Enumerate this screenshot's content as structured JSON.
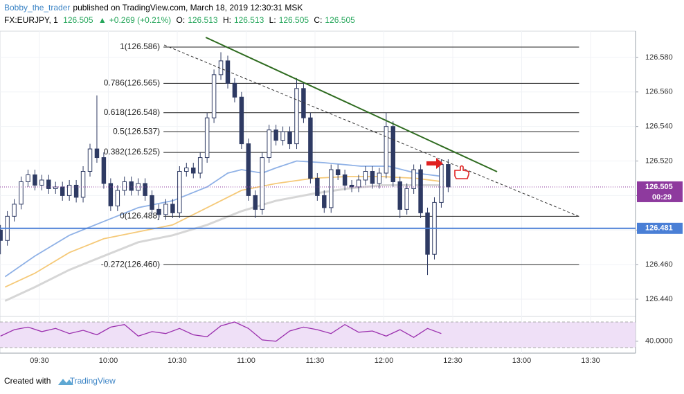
{
  "header": {
    "author": "Bobby_the_trader",
    "published": "published on TradingView.com, March 18, 2019 12:30:31 MSK",
    "symbol": "FX:EURJPY, 1",
    "last": "126.505",
    "arrow": "▲",
    "change": "+0.269 (+0.21%)",
    "o_label": "O:",
    "o": "126.513",
    "h_label": "H:",
    "h": "126.513",
    "l_label": "L:",
    "l": "126.505",
    "c_label": "C:",
    "c": "126.505"
  },
  "footer": {
    "text": "Created with",
    "brand": "TradingView"
  },
  "chart_data": [
    {
      "type": "candlestick",
      "x": [
        553,
        556,
        559,
        562,
        565,
        568,
        571,
        574,
        577,
        580,
        583,
        586,
        589,
        592,
        595,
        598,
        601,
        604,
        607,
        610,
        613,
        616,
        619,
        622,
        625,
        628,
        631,
        634,
        637,
        640,
        643,
        646,
        649,
        652,
        655,
        658,
        661,
        664,
        667,
        670,
        673,
        676,
        679,
        682,
        685,
        688,
        691,
        694,
        697,
        700,
        703,
        706,
        709,
        712,
        715,
        718,
        721,
        724,
        727,
        730,
        733,
        736,
        739,
        742,
        745,
        748
      ],
      "open": [
        126.48,
        126.474,
        126.488,
        126.495,
        126.508,
        126.512,
        126.506,
        126.509,
        126.504,
        126.505,
        126.5,
        126.506,
        126.499,
        126.514,
        126.527,
        126.522,
        126.507,
        126.494,
        126.503,
        126.508,
        126.503,
        126.507,
        126.5,
        126.492,
        126.489,
        126.495,
        126.49,
        126.514,
        126.516,
        126.513,
        126.522,
        126.545,
        126.57,
        126.578,
        126.565,
        126.557,
        126.53,
        126.5,
        126.492,
        126.522,
        126.538,
        126.532,
        126.537,
        126.53,
        126.562,
        126.545,
        126.51,
        126.5,
        126.493,
        126.515,
        126.512,
        126.506,
        126.505,
        126.509,
        126.514,
        126.507,
        126.513,
        126.54,
        126.508,
        126.492,
        126.504,
        126.515,
        126.49,
        126.466,
        126.496,
        126.518
      ],
      "high": [
        126.483,
        126.491,
        126.498,
        126.511,
        126.515,
        126.515,
        126.512,
        126.512,
        126.508,
        126.508,
        126.509,
        126.509,
        126.517,
        126.53,
        126.558,
        126.525,
        126.51,
        126.506,
        126.511,
        126.511,
        126.51,
        126.51,
        126.503,
        126.495,
        126.498,
        126.498,
        126.517,
        126.519,
        126.519,
        126.525,
        126.548,
        126.573,
        126.583,
        126.581,
        126.568,
        126.56,
        126.533,
        126.503,
        126.525,
        126.541,
        126.541,
        126.54,
        126.54,
        126.568,
        126.565,
        126.548,
        126.513,
        126.503,
        126.518,
        126.518,
        126.515,
        126.509,
        126.512,
        126.517,
        126.517,
        126.516,
        126.548,
        126.543,
        126.511,
        126.507,
        126.518,
        126.518,
        126.493,
        126.499,
        126.521,
        126.521
      ],
      "low": [
        126.466,
        126.471,
        126.485,
        126.492,
        126.505,
        126.503,
        126.503,
        126.501,
        126.501,
        126.497,
        126.497,
        126.496,
        126.496,
        126.511,
        126.519,
        126.504,
        126.491,
        126.491,
        126.5,
        126.5,
        126.5,
        126.497,
        126.489,
        126.486,
        126.486,
        126.487,
        126.487,
        126.511,
        126.51,
        126.51,
        126.519,
        126.542,
        126.567,
        126.562,
        126.554,
        126.527,
        126.497,
        126.487,
        126.489,
        126.519,
        126.529,
        126.529,
        126.527,
        126.527,
        126.542,
        126.507,
        126.497,
        126.49,
        126.49,
        126.509,
        126.503,
        126.502,
        126.502,
        126.506,
        126.504,
        126.504,
        126.51,
        126.505,
        126.487,
        126.489,
        126.501,
        126.487,
        126.454,
        126.463,
        126.493,
        126.502
      ],
      "close": [
        126.474,
        126.488,
        126.495,
        126.508,
        126.512,
        126.506,
        126.509,
        126.504,
        126.505,
        126.5,
        126.506,
        126.499,
        126.514,
        126.527,
        126.522,
        126.507,
        126.494,
        126.503,
        126.508,
        126.503,
        126.507,
        126.5,
        126.492,
        126.489,
        126.495,
        126.49,
        126.514,
        126.516,
        126.513,
        126.522,
        126.545,
        126.57,
        126.578,
        126.565,
        126.557,
        126.53,
        126.5,
        126.492,
        126.522,
        126.538,
        126.532,
        126.537,
        126.53,
        126.562,
        126.545,
        126.51,
        126.5,
        126.493,
        126.515,
        126.512,
        126.506,
        126.505,
        126.509,
        126.514,
        126.507,
        126.513,
        126.54,
        126.508,
        126.492,
        126.504,
        126.515,
        126.49,
        126.466,
        126.496,
        126.518,
        126.505
      ],
      "up_color": "#2e3a63",
      "down_color": "#2e3a63",
      "series": [
        {
          "color": "#8fb1e6",
          "x": [
            555,
            568,
            583,
            598,
            613,
            628,
            643,
            652,
            658,
            667,
            673,
            682,
            694,
            710,
            722,
            734,
            746
          ],
          "values": [
            126.453,
            126.465,
            126.477,
            126.485,
            126.493,
            126.497,
            126.505,
            126.513,
            126.515,
            126.513,
            126.516,
            126.52,
            126.519,
            126.517,
            126.517,
            126.513,
            126.511
          ]
        },
        {
          "color": "#f5c978",
          "x": [
            555,
            568,
            583,
            598,
            613,
            628,
            643,
            658,
            673,
            689,
            704,
            719,
            734,
            746
          ],
          "values": [
            126.447,
            126.455,
            126.467,
            126.475,
            126.479,
            126.483,
            126.493,
            126.503,
            126.507,
            126.51,
            126.511,
            126.511,
            126.51,
            126.508
          ]
        },
        {
          "color": "#d6d6d6",
          "x": [
            555,
            568,
            583,
            598,
            613,
            628,
            643,
            658,
            673,
            689,
            704,
            719,
            734,
            746
          ],
          "values": [
            126.439,
            126.447,
            126.457,
            126.465,
            126.473,
            126.477,
            126.483,
            126.491,
            126.497,
            126.501,
            126.504,
            126.506,
            126.506,
            126.506
          ]
        }
      ],
      "xlim": [
        552.8,
        829.6
      ],
      "ylim": [
        126.4308,
        126.5952
      ],
      "xticks": [
        {
          "value": 570,
          "label": "09:30"
        },
        {
          "value": 600,
          "label": "10:00"
        },
        {
          "value": 630,
          "label": "10:30"
        },
        {
          "value": 660,
          "label": "11:00"
        },
        {
          "value": 690,
          "label": "11:30"
        },
        {
          "value": 720,
          "label": "12:00"
        },
        {
          "value": 750,
          "label": "12:30"
        },
        {
          "value": 780,
          "label": "13:00"
        },
        {
          "value": 810,
          "label": "13:30"
        }
      ],
      "yticks": [
        {
          "value": 126.44,
          "label": "126.440"
        },
        {
          "value": 126.46,
          "label": "126.460"
        },
        {
          "value": 126.48,
          "label": "126.480"
        },
        {
          "value": 126.5,
          "label": "126.500"
        },
        {
          "value": 126.52,
          "label": "126.520"
        },
        {
          "value": 126.54,
          "label": "126.540"
        },
        {
          "value": 126.56,
          "label": "126.560"
        },
        {
          "value": 126.58,
          "label": "126.580"
        }
      ],
      "grid": true,
      "fib_x": [
        624,
        805
      ],
      "fib": [
        {
          "value": 126.586,
          "label": "1(126.586)"
        },
        {
          "value": 126.565,
          "label": "0.786(126.565)"
        },
        {
          "value": 126.548,
          "label": "0.618(126.548)"
        },
        {
          "value": 126.537,
          "label": "0.5(126.537)"
        },
        {
          "value": 126.525,
          "label": "0.382(126.525)"
        },
        {
          "value": 126.488,
          "label": "0(126.488)"
        },
        {
          "value": 126.46,
          "label": "-0.272(126.460)"
        }
      ],
      "trendline": {
        "color": "#2e6b1f",
        "x": [
          642.4,
          769.3
        ],
        "values": [
          126.5916,
          126.5138
        ]
      },
      "dashed_line": {
        "color": "#333333",
        "x": [
          624.3,
          805.4
        ],
        "values": [
          126.5872,
          126.4877
        ]
      },
      "level": {
        "value": 126.481,
        "label": "126.481",
        "color": "#4a7fd6"
      },
      "last_price": {
        "value": 126.505,
        "label": "126.505",
        "countdown": "00:29",
        "color": "#8e3a9e"
      }
    },
    {
      "type": "line",
      "x": [
        553,
        559,
        565,
        571,
        577,
        583,
        589,
        595,
        601,
        607,
        613,
        619,
        625,
        631,
        637,
        643,
        649,
        655,
        661,
        667,
        673,
        679,
        685,
        691,
        697,
        703,
        709,
        715,
        721,
        727,
        733,
        739,
        745
      ],
      "values": [
        48,
        58,
        62,
        55,
        60,
        52,
        57,
        50,
        62,
        66,
        48,
        55,
        52,
        60,
        50,
        47,
        64,
        70,
        60,
        42,
        40,
        56,
        62,
        58,
        52,
        66,
        54,
        56,
        48,
        58,
        46,
        60,
        52
      ],
      "color": "#9b2fae",
      "band_color": "#efe0f7",
      "bands": [
        30,
        70
      ],
      "ylim": [
        26.8,
        75.4
      ],
      "yticks": [
        {
          "value": 40,
          "label": "40.0000"
        }
      ]
    }
  ]
}
